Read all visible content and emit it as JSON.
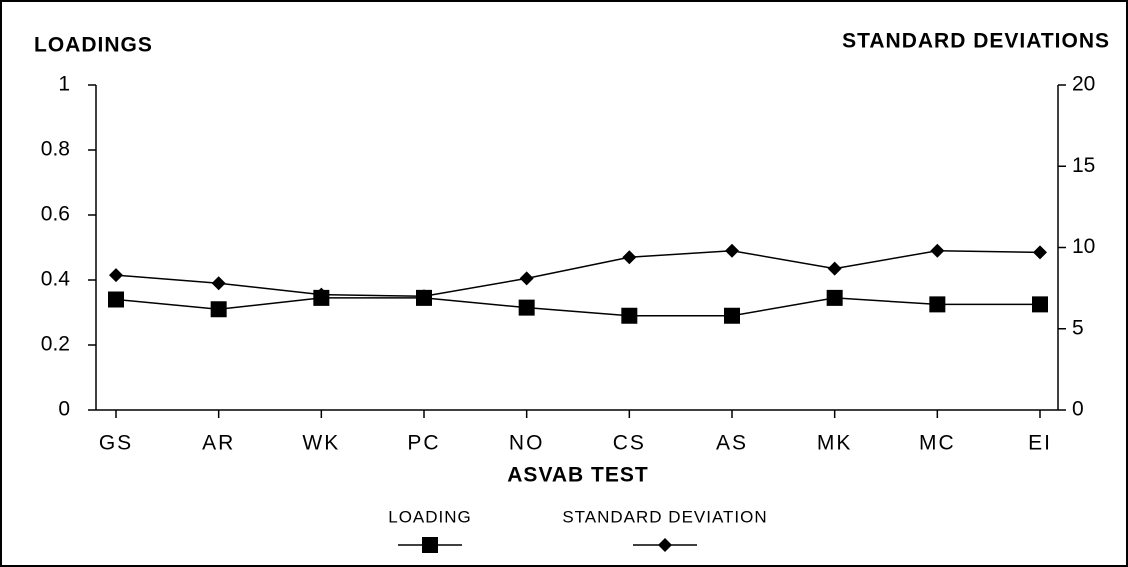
{
  "chart_data": {
    "type": "line",
    "y_title": "LOADINGS",
    "y2_title": "STANDARD DEVIATIONS",
    "x_title": "ASVAB TEST",
    "categories": [
      "GS",
      "AR",
      "WK",
      "PC",
      "NO",
      "CS",
      "AS",
      "MK",
      "MC",
      "EI"
    ],
    "series": [
      {
        "name": "LOADING",
        "color": "#000000",
        "marker": "square",
        "axis": "y",
        "values": [
          0.34,
          0.31,
          0.345,
          0.345,
          0.315,
          0.29,
          0.29,
          0.345,
          0.325,
          0.325
        ]
      },
      {
        "name": "STANDARD DEVIATION",
        "color": "#000000",
        "marker": "diamond",
        "axis": "y2",
        "values": [
          8.3,
          7.8,
          7.1,
          7.0,
          8.1,
          9.4,
          9.8,
          8.7,
          9.8,
          9.7
        ]
      }
    ],
    "ylim": [
      0,
      1
    ],
    "yticks": [
      0,
      0.2,
      0.4,
      0.6,
      0.8,
      1
    ],
    "y2lim": [
      0,
      20
    ],
    "y2ticks": [
      0,
      5,
      10,
      15,
      20
    ],
    "legend": "bottom",
    "grid": false
  }
}
